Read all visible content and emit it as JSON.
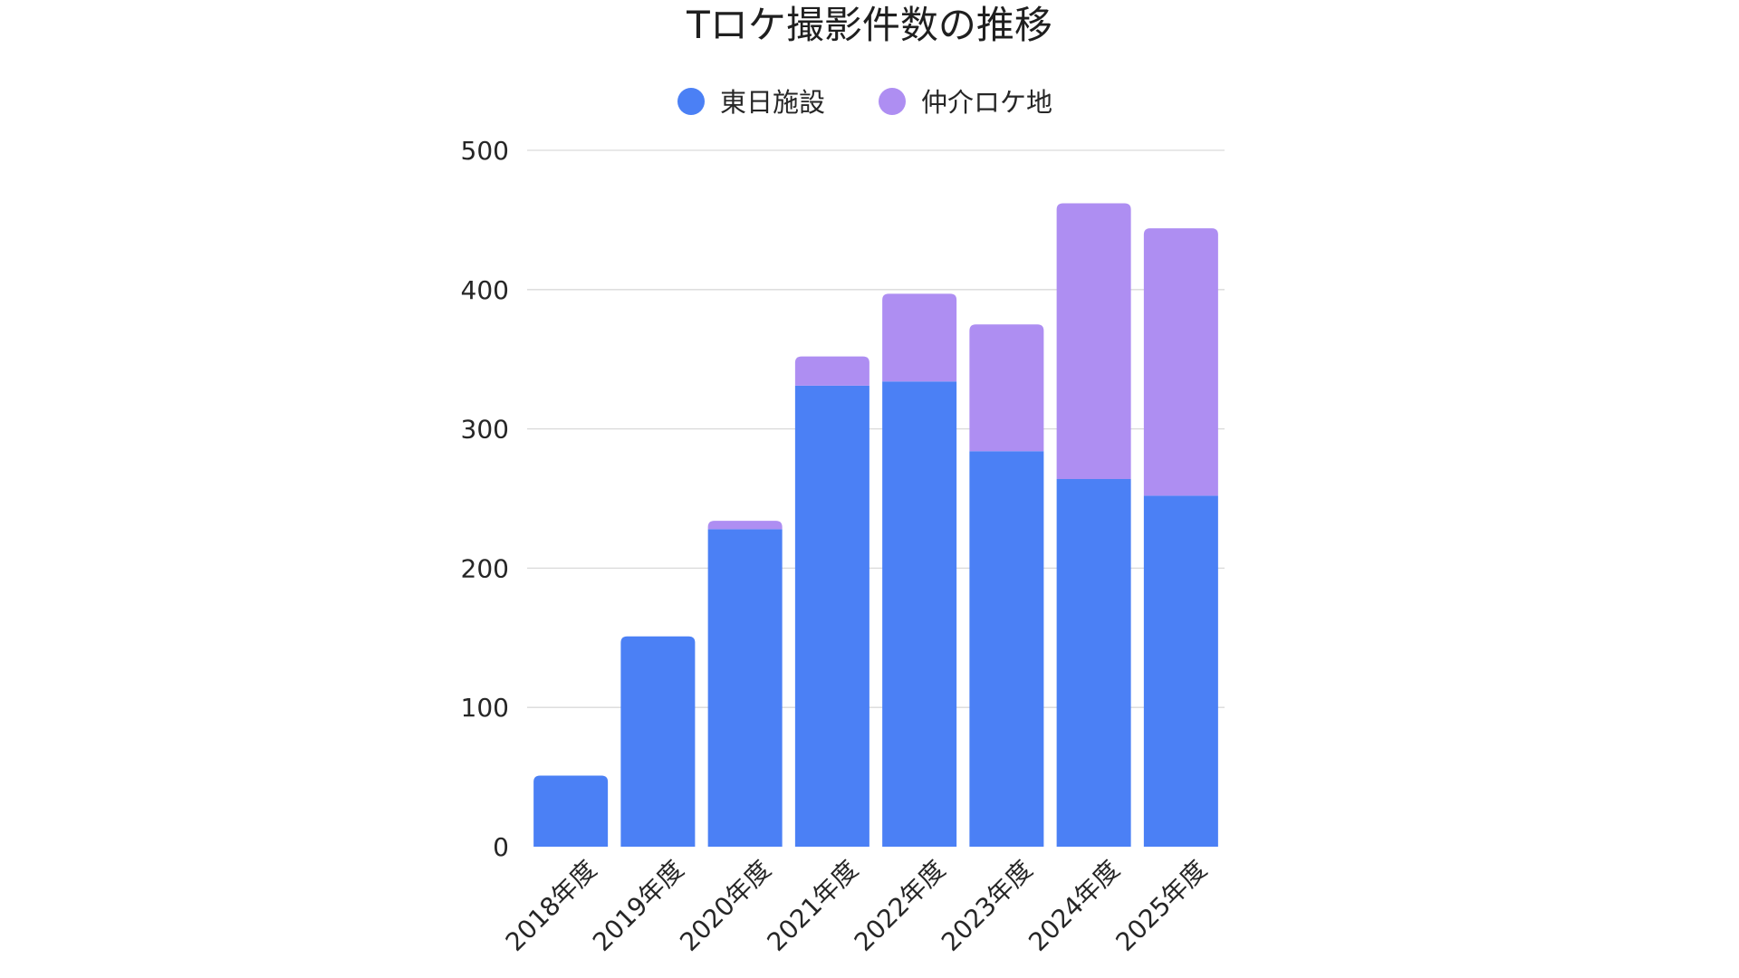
{
  "chart_data": {
    "type": "bar",
    "stacked": true,
    "title": "Tロケ撮影件数の推移",
    "categories": [
      "2018年度",
      "2019年度",
      "2020年度",
      "2021年度",
      "2022年度",
      "2023年度",
      "2024年度",
      "2025年度"
    ],
    "series": [
      {
        "name": "東日施設",
        "color": "#4b80f5",
        "values": [
          51,
          151,
          228,
          331,
          334,
          284,
          264,
          252
        ]
      },
      {
        "name": "仲介ロケ地",
        "color": "#ae8ef2",
        "values": [
          0,
          0,
          6,
          21,
          63,
          91,
          198,
          192
        ]
      }
    ],
    "y_ticks": [
      "0",
      "100",
      "200",
      "300",
      "400",
      "500"
    ],
    "ylim": [
      0,
      500
    ],
    "grid": true,
    "legend_position": "top"
  }
}
